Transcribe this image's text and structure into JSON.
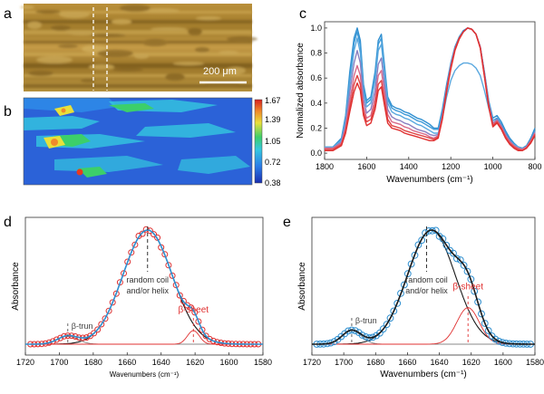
{
  "panels": {
    "a": {
      "letter": "a",
      "scale_bar_label": "200 μm"
    },
    "b": {
      "letter": "b",
      "colorbar_ticks": [
        "1.67",
        "1.39",
        "1.05",
        "0.72",
        "0.38"
      ]
    },
    "c": {
      "letter": "c"
    },
    "d": {
      "letter": "d"
    },
    "e": {
      "letter": "e"
    }
  },
  "colors": {
    "red": "#e03030",
    "blue": "#2f8fd0",
    "fit_black": "#1a1a1a",
    "component_grey": "#888888",
    "axis": "#333333"
  },
  "chart_data": [
    {
      "panel": "c",
      "type": "line",
      "xlabel": "Wavenumbers (cm⁻¹)",
      "ylabel": "Normalized absorbance",
      "xlim": [
        1800,
        800
      ],
      "ylim": [
        -0.05,
        1.05
      ],
      "x_reversed": true,
      "xticks": [
        1800,
        1600,
        1400,
        1200,
        1000,
        800
      ],
      "yticks": [
        0.0,
        0.2,
        0.4,
        0.6,
        0.8,
        1.0
      ],
      "ytick_labels": [
        "0.0",
        "0.2",
        "0.4",
        "0.6",
        "0.8",
        "1.0"
      ],
      "x": [
        1800,
        1760,
        1720,
        1700,
        1680,
        1660,
        1645,
        1630,
        1615,
        1600,
        1580,
        1560,
        1545,
        1530,
        1515,
        1500,
        1480,
        1460,
        1440,
        1420,
        1400,
        1380,
        1360,
        1340,
        1320,
        1300,
        1280,
        1260,
        1240,
        1220,
        1200,
        1180,
        1160,
        1140,
        1120,
        1100,
        1080,
        1060,
        1040,
        1020,
        1000,
        980,
        960,
        940,
        920,
        900,
        880,
        860,
        840,
        820,
        800
      ],
      "series": [
        {
          "color": "#2f8fd0",
          "values": [
            0.05,
            0.05,
            0.12,
            0.3,
            0.65,
            0.92,
            1.0,
            0.9,
            0.55,
            0.42,
            0.45,
            0.65,
            0.9,
            0.95,
            0.7,
            0.45,
            0.38,
            0.36,
            0.35,
            0.33,
            0.32,
            0.3,
            0.28,
            0.27,
            0.25,
            0.23,
            0.2,
            0.2,
            0.35,
            0.55,
            0.72,
            0.85,
            0.93,
            0.98,
            1.0,
            0.99,
            0.95,
            0.85,
            0.65,
            0.42,
            0.28,
            0.3,
            0.25,
            0.18,
            0.12,
            0.08,
            0.05,
            0.04,
            0.06,
            0.12,
            0.2
          ]
        },
        {
          "color": "#3d9ad8",
          "values": [
            0.05,
            0.05,
            0.11,
            0.28,
            0.6,
            0.88,
            0.97,
            0.86,
            0.52,
            0.4,
            0.43,
            0.62,
            0.87,
            0.92,
            0.67,
            0.43,
            0.36,
            0.34,
            0.33,
            0.31,
            0.3,
            0.28,
            0.26,
            0.25,
            0.23,
            0.21,
            0.19,
            0.19,
            0.33,
            0.53,
            0.7,
            0.84,
            0.92,
            0.97,
            1.0,
            0.99,
            0.95,
            0.85,
            0.64,
            0.41,
            0.26,
            0.28,
            0.23,
            0.16,
            0.11,
            0.07,
            0.05,
            0.04,
            0.05,
            0.11,
            0.18
          ]
        },
        {
          "color": "#5aa8df",
          "values": [
            0.05,
            0.05,
            0.1,
            0.26,
            0.56,
            0.82,
            0.92,
            0.8,
            0.48,
            0.37,
            0.4,
            0.58,
            0.82,
            0.87,
            0.63,
            0.4,
            0.33,
            0.31,
            0.3,
            0.28,
            0.27,
            0.25,
            0.23,
            0.22,
            0.2,
            0.18,
            0.16,
            0.16,
            0.28,
            0.45,
            0.58,
            0.66,
            0.7,
            0.72,
            0.72,
            0.71,
            0.68,
            0.62,
            0.5,
            0.36,
            0.24,
            0.26,
            0.21,
            0.15,
            0.1,
            0.07,
            0.05,
            0.04,
            0.05,
            0.1,
            0.17
          ]
        },
        {
          "color": "#8a7fc0",
          "values": [
            0.04,
            0.04,
            0.09,
            0.23,
            0.49,
            0.72,
            0.82,
            0.72,
            0.43,
            0.32,
            0.35,
            0.5,
            0.71,
            0.76,
            0.55,
            0.35,
            0.29,
            0.27,
            0.26,
            0.24,
            0.23,
            0.21,
            0.19,
            0.18,
            0.17,
            0.15,
            0.14,
            0.15,
            0.3,
            0.52,
            0.7,
            0.84,
            0.92,
            0.97,
            1.0,
            0.99,
            0.95,
            0.85,
            0.64,
            0.4,
            0.24,
            0.27,
            0.22,
            0.15,
            0.1,
            0.06,
            0.04,
            0.03,
            0.05,
            0.1,
            0.17
          ]
        },
        {
          "color": "#d86a8a",
          "values": [
            0.04,
            0.04,
            0.08,
            0.2,
            0.42,
            0.62,
            0.7,
            0.62,
            0.37,
            0.28,
            0.3,
            0.44,
            0.62,
            0.66,
            0.48,
            0.31,
            0.25,
            0.24,
            0.23,
            0.21,
            0.2,
            0.18,
            0.17,
            0.16,
            0.15,
            0.13,
            0.12,
            0.14,
            0.29,
            0.51,
            0.69,
            0.83,
            0.92,
            0.97,
            1.0,
            0.99,
            0.95,
            0.85,
            0.63,
            0.39,
            0.23,
            0.26,
            0.21,
            0.14,
            0.09,
            0.06,
            0.04,
            0.03,
            0.05,
            0.1,
            0.16
          ]
        },
        {
          "color": "#e04545",
          "values": [
            0.03,
            0.03,
            0.07,
            0.18,
            0.37,
            0.55,
            0.62,
            0.55,
            0.33,
            0.25,
            0.27,
            0.39,
            0.55,
            0.58,
            0.42,
            0.27,
            0.22,
            0.21,
            0.2,
            0.18,
            0.17,
            0.16,
            0.15,
            0.14,
            0.13,
            0.12,
            0.11,
            0.13,
            0.28,
            0.5,
            0.68,
            0.83,
            0.92,
            0.97,
            1.0,
            0.99,
            0.95,
            0.84,
            0.62,
            0.38,
            0.22,
            0.25,
            0.2,
            0.13,
            0.08,
            0.05,
            0.03,
            0.02,
            0.04,
            0.09,
            0.15
          ]
        },
        {
          "color": "#e03030",
          "values": [
            0.02,
            0.02,
            0.06,
            0.16,
            0.33,
            0.49,
            0.56,
            0.5,
            0.3,
            0.22,
            0.24,
            0.35,
            0.5,
            0.53,
            0.38,
            0.24,
            0.2,
            0.19,
            0.18,
            0.16,
            0.15,
            0.14,
            0.13,
            0.12,
            0.11,
            0.1,
            0.1,
            0.12,
            0.27,
            0.49,
            0.67,
            0.82,
            0.91,
            0.97,
            1.0,
            0.99,
            0.95,
            0.84,
            0.61,
            0.37,
            0.21,
            0.24,
            0.19,
            0.12,
            0.07,
            0.04,
            0.02,
            0.02,
            0.04,
            0.08,
            0.14
          ]
        }
      ]
    },
    {
      "panel": "d",
      "type": "line",
      "xlabel": "Wavenumbers (cm⁻¹)",
      "ylabel": "Absorbance",
      "xlim": [
        1720,
        1580
      ],
      "x_reversed": true,
      "xticks": [
        1720,
        1700,
        1680,
        1660,
        1640,
        1620,
        1600,
        1580
      ],
      "annotations": [
        {
          "text": "random coil",
          "x": 1648
        },
        {
          "text": "and/or helix",
          "x": 1648
        },
        {
          "text": "β-trun",
          "x": 1695
        },
        {
          "text": "β-sheet",
          "x": 1621
        }
      ],
      "components": [
        {
          "name": "random coil and/or helix",
          "center": 1648,
          "height": 1.0,
          "width": 14.5,
          "color": "#1a1a1a"
        },
        {
          "name": "β-trun",
          "center": 1695,
          "height": 0.07,
          "width": 6,
          "color": "#888888"
        },
        {
          "name": "β-sheet",
          "center": 1621,
          "height": 0.12,
          "width": 3.5,
          "color": "#e03030"
        }
      ],
      "observed_color": "#e03030",
      "fit_color": "#2f8fd0"
    },
    {
      "panel": "e",
      "type": "line",
      "xlabel": "Wavenumbers (cm⁻¹)",
      "ylabel": "Absorbance",
      "xlim": [
        1720,
        1580
      ],
      "x_reversed": true,
      "xticks": [
        1720,
        1700,
        1680,
        1660,
        1640,
        1620,
        1600,
        1580
      ],
      "annotations": [
        {
          "text": "random coil",
          "x": 1648
        },
        {
          "text": "and/or helix",
          "x": 1648
        },
        {
          "text": "β-trun",
          "x": 1695
        },
        {
          "text": "β-sheet",
          "x": 1622
        }
      ],
      "components": [
        {
          "name": "random coil and/or helix",
          "center": 1645,
          "height": 1.0,
          "width": 15,
          "color": "#1a1a1a"
        },
        {
          "name": "β-trun",
          "center": 1695,
          "height": 0.12,
          "width": 6,
          "color": "#888888"
        },
        {
          "name": "β-sheet",
          "center": 1622,
          "height": 0.32,
          "width": 7,
          "color": "#e03030"
        }
      ],
      "observed_color": "#2f8fd0",
      "fit_color": "#1a1a1a"
    }
  ]
}
